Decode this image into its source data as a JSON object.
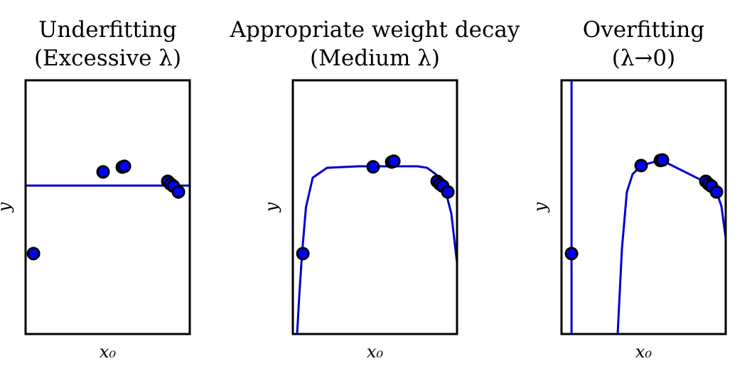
{
  "chart_data": [
    {
      "type": "scatter",
      "title": [
        "Underfitting",
        "(Excessive λ)"
      ],
      "xlabel": "x₀",
      "ylabel": "y",
      "xlim": [
        0,
        1
      ],
      "ylim": [
        0,
        1
      ],
      "series": [
        {
          "type": "scatter",
          "color": "#0000ff",
          "x": [
            0.048,
            0.472,
            0.589,
            0.602,
            0.866,
            0.883,
            0.9,
            0.931
          ],
          "values": [
            0.317,
            0.639,
            0.658,
            0.661,
            0.602,
            0.591,
            0.583,
            0.56
          ]
        },
        {
          "type": "line",
          "color": "#0000cc",
          "x": [
            0,
            1
          ],
          "values": [
            0.585,
            0.585
          ]
        }
      ]
    },
    {
      "type": "scatter",
      "title": [
        "Appropriate weight decay",
        "(Medium λ)"
      ],
      "xlabel": "x₀",
      "ylabel": "y",
      "xlim": [
        0,
        1
      ],
      "ylim": [
        0,
        1
      ],
      "series": [
        {
          "type": "scatter",
          "color": "#0000ff",
          "x": [
            0.061,
            0.489,
            0.602,
            0.615,
            0.879,
            0.896,
            0.913,
            0.944
          ],
          "values": [
            0.317,
            0.659,
            0.678,
            0.681,
            0.602,
            0.591,
            0.583,
            0.56
          ]
        },
        {
          "type": "line",
          "color": "#0000cc",
          "x": [
            0.026,
            0.04,
            0.056,
            0.08,
            0.121,
            0.208,
            0.4,
            0.76,
            0.818,
            0.87,
            0.922,
            0.965,
            1.0
          ],
          "values": [
            0,
            0.16,
            0.317,
            0.5,
            0.616,
            0.655,
            0.661,
            0.661,
            0.655,
            0.63,
            0.583,
            0.476,
            0.28
          ]
        }
      ]
    },
    {
      "type": "scatter",
      "title": [
        "Overfitting",
        "(λ→0)"
      ],
      "xlabel": "x₀",
      "ylabel": "y",
      "xlim": [
        0,
        1
      ],
      "ylim": [
        0,
        1
      ],
      "series": [
        {
          "type": "scatter",
          "color": "#0000ff",
          "x": [
            0.061,
            0.485,
            0.602,
            0.615,
            0.879,
            0.896,
            0.913,
            0.944
          ],
          "values": [
            0.317,
            0.664,
            0.684,
            0.686,
            0.602,
            0.591,
            0.583,
            0.56
          ]
        },
        {
          "type": "line",
          "color": "#0000cc",
          "x": [
            0.061,
            0.061,
            null,
            0.342,
            0.368,
            0.398,
            0.433,
            0.485,
            0.606,
            0.866,
            0.944,
            0.974,
            1.0
          ],
          "values": [
            0,
            1,
            null,
            0,
            0.336,
            0.56,
            0.63,
            0.664,
            0.686,
            0.602,
            0.56,
            0.504,
            0.378
          ]
        }
      ]
    }
  ]
}
